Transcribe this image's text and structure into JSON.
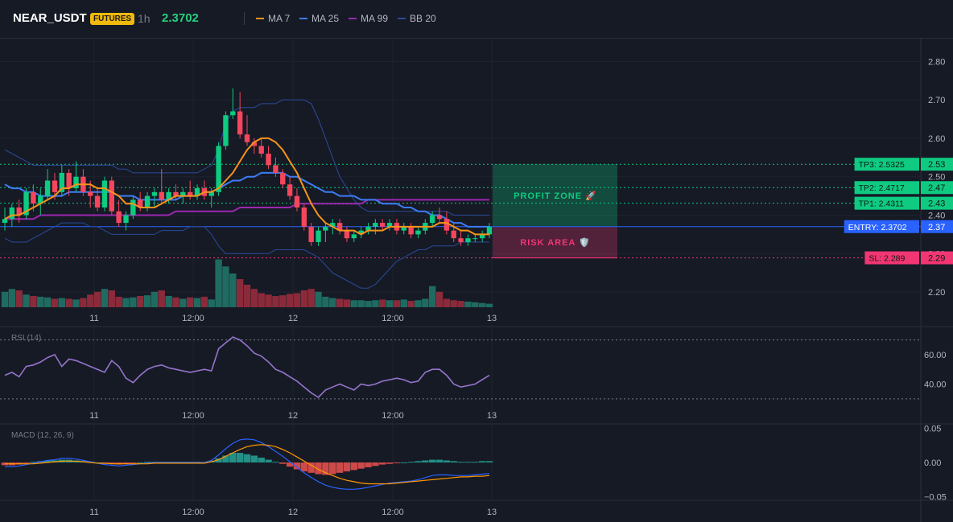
{
  "header": {
    "symbol": "NEAR_USDT",
    "badge": "FUTURES",
    "timeframe": "1h",
    "price": "2.3702",
    "legend": [
      {
        "label": "MA 7",
        "color": "#f7931a"
      },
      {
        "label": "MA 25",
        "color": "#3d7cf5"
      },
      {
        "label": "MA 99",
        "color": "#9c27b0"
      },
      {
        "label": "BB 20",
        "color": "#2a4a9c"
      }
    ]
  },
  "colors": {
    "up": "#26a69a",
    "up_bright": "#0ecb81",
    "down": "#f6465d",
    "entry": "#2962ff",
    "profit": "#0ecb81",
    "risk": "#f23674",
    "rsi": "#9575cd",
    "macd": "#2962ff",
    "signal": "#ff9800"
  },
  "chart_data": [
    {
      "type": "candlestick",
      "name": "price",
      "x_ticks": [
        "11",
        "12:00",
        "12",
        "12:00",
        "13"
      ],
      "y_ticks": [
        "2.80",
        "2.70",
        "2.60",
        "2.50",
        "2.40",
        "2.30",
        "2.20"
      ],
      "ylim": [
        2.15,
        2.83
      ],
      "ohlc": [
        [
          2.38,
          2.42,
          2.36,
          2.39
        ],
        [
          2.39,
          2.43,
          2.37,
          2.42
        ],
        [
          2.42,
          2.44,
          2.38,
          2.4
        ],
        [
          2.4,
          2.47,
          2.39,
          2.46
        ],
        [
          2.46,
          2.48,
          2.41,
          2.43
        ],
        [
          2.43,
          2.47,
          2.4,
          2.45
        ],
        [
          2.45,
          2.52,
          2.44,
          2.49
        ],
        [
          2.49,
          2.51,
          2.44,
          2.46
        ],
        [
          2.46,
          2.53,
          2.45,
          2.51
        ],
        [
          2.51,
          2.52,
          2.45,
          2.47
        ],
        [
          2.47,
          2.54,
          2.46,
          2.5
        ],
        [
          2.5,
          2.52,
          2.45,
          2.46
        ],
        [
          2.46,
          2.49,
          2.42,
          2.45
        ],
        [
          2.45,
          2.47,
          2.41,
          2.42
        ],
        [
          2.42,
          2.5,
          2.41,
          2.49
        ],
        [
          2.49,
          2.5,
          2.4,
          2.41
        ],
        [
          2.41,
          2.44,
          2.37,
          2.38
        ],
        [
          2.38,
          2.41,
          2.36,
          2.4
        ],
        [
          2.4,
          2.45,
          2.39,
          2.44
        ],
        [
          2.44,
          2.46,
          2.41,
          2.42
        ],
        [
          2.42,
          2.46,
          2.41,
          2.45
        ],
        [
          2.45,
          2.47,
          2.42,
          2.46
        ],
        [
          2.46,
          2.52,
          2.43,
          2.44
        ],
        [
          2.44,
          2.47,
          2.43,
          2.46
        ],
        [
          2.46,
          2.48,
          2.44,
          2.45
        ],
        [
          2.45,
          2.47,
          2.43,
          2.46
        ],
        [
          2.46,
          2.49,
          2.44,
          2.45
        ],
        [
          2.45,
          2.48,
          2.44,
          2.47
        ],
        [
          2.47,
          2.49,
          2.44,
          2.45
        ],
        [
          2.45,
          2.47,
          2.42,
          2.46
        ],
        [
          2.46,
          2.59,
          2.45,
          2.58
        ],
        [
          2.58,
          2.67,
          2.57,
          2.66
        ],
        [
          2.66,
          2.73,
          2.65,
          2.67
        ],
        [
          2.67,
          2.72,
          2.6,
          2.61
        ],
        [
          2.61,
          2.66,
          2.58,
          2.59
        ],
        [
          2.59,
          2.6,
          2.56,
          2.58
        ],
        [
          2.58,
          2.6,
          2.55,
          2.56
        ],
        [
          2.56,
          2.58,
          2.52,
          2.53
        ],
        [
          2.53,
          2.55,
          2.5,
          2.51
        ],
        [
          2.51,
          2.52,
          2.47,
          2.48
        ],
        [
          2.48,
          2.5,
          2.44,
          2.45
        ],
        [
          2.45,
          2.47,
          2.41,
          2.42
        ],
        [
          2.42,
          2.43,
          2.36,
          2.37
        ],
        [
          2.37,
          2.38,
          2.32,
          2.33
        ],
        [
          2.33,
          2.37,
          2.32,
          2.36
        ],
        [
          2.36,
          2.38,
          2.33,
          2.37
        ],
        [
          2.37,
          2.39,
          2.35,
          2.38
        ],
        [
          2.38,
          2.39,
          2.35,
          2.36
        ],
        [
          2.36,
          2.37,
          2.33,
          2.34
        ],
        [
          2.34,
          2.36,
          2.33,
          2.35
        ],
        [
          2.35,
          2.37,
          2.34,
          2.36
        ],
        [
          2.36,
          2.38,
          2.35,
          2.37
        ],
        [
          2.37,
          2.39,
          2.35,
          2.38
        ],
        [
          2.38,
          2.39,
          2.36,
          2.37
        ],
        [
          2.37,
          2.39,
          2.36,
          2.38
        ],
        [
          2.38,
          2.39,
          2.35,
          2.36
        ],
        [
          2.36,
          2.38,
          2.35,
          2.37
        ],
        [
          2.37,
          2.38,
          2.34,
          2.35
        ],
        [
          2.35,
          2.37,
          2.34,
          2.36
        ],
        [
          2.36,
          2.39,
          2.35,
          2.38
        ],
        [
          2.38,
          2.41,
          2.37,
          2.4
        ],
        [
          2.4,
          2.42,
          2.38,
          2.39
        ],
        [
          2.39,
          2.41,
          2.35,
          2.36
        ],
        [
          2.36,
          2.38,
          2.33,
          2.34
        ],
        [
          2.34,
          2.36,
          2.32,
          2.33
        ],
        [
          2.33,
          2.35,
          2.32,
          2.34
        ],
        [
          2.34,
          2.35,
          2.33,
          2.34
        ],
        [
          2.34,
          2.36,
          2.33,
          2.35
        ],
        [
          2.35,
          2.38,
          2.34,
          2.37
        ]
      ],
      "ma7": [
        2.39,
        2.4,
        2.4,
        2.41,
        2.42,
        2.43,
        2.44,
        2.45,
        2.47,
        2.47,
        2.48,
        2.48,
        2.48,
        2.47,
        2.47,
        2.46,
        2.45,
        2.43,
        2.43,
        2.42,
        2.42,
        2.42,
        2.43,
        2.44,
        2.45,
        2.45,
        2.45,
        2.45,
        2.46,
        2.46,
        2.47,
        2.49,
        2.51,
        2.54,
        2.57,
        2.59,
        2.6,
        2.6,
        2.59,
        2.57,
        2.54,
        2.51,
        2.47,
        2.43,
        2.4,
        2.38,
        2.37,
        2.36,
        2.36,
        2.36,
        2.35,
        2.36,
        2.36,
        2.36,
        2.37,
        2.37,
        2.37,
        2.37,
        2.37,
        2.37,
        2.37,
        2.38,
        2.38,
        2.37,
        2.36,
        2.36,
        2.35,
        2.35,
        2.35
      ],
      "ma25": [
        2.48,
        2.47,
        2.47,
        2.46,
        2.46,
        2.45,
        2.45,
        2.45,
        2.45,
        2.46,
        2.46,
        2.46,
        2.46,
        2.46,
        2.46,
        2.46,
        2.45,
        2.45,
        2.45,
        2.44,
        2.44,
        2.44,
        2.44,
        2.44,
        2.44,
        2.45,
        2.45,
        2.45,
        2.46,
        2.46,
        2.47,
        2.48,
        2.49,
        2.49,
        2.5,
        2.5,
        2.51,
        2.51,
        2.51,
        2.51,
        2.5,
        2.5,
        2.49,
        2.48,
        2.47,
        2.46,
        2.46,
        2.45,
        2.45,
        2.45,
        2.44,
        2.44,
        2.44,
        2.43,
        2.43,
        2.43,
        2.42,
        2.42,
        2.41,
        2.41,
        2.4,
        2.4,
        2.39,
        2.38,
        2.38,
        2.37,
        2.37,
        2.37,
        2.37
      ],
      "ma99": [
        2.39,
        2.39,
        2.39,
        2.39,
        2.39,
        2.4,
        2.4,
        2.4,
        2.4,
        2.4,
        2.4,
        2.4,
        2.4,
        2.4,
        2.4,
        2.4,
        2.4,
        2.4,
        2.4,
        2.4,
        2.4,
        2.4,
        2.4,
        2.4,
        2.41,
        2.41,
        2.41,
        2.41,
        2.41,
        2.41,
        2.41,
        2.41,
        2.41,
        2.42,
        2.42,
        2.42,
        2.42,
        2.42,
        2.42,
        2.42,
        2.42,
        2.43,
        2.43,
        2.43,
        2.43,
        2.43,
        2.43,
        2.43,
        2.43,
        2.43,
        2.43,
        2.44,
        2.44,
        2.44,
        2.44,
        2.44,
        2.44,
        2.44,
        2.44,
        2.44,
        2.44,
        2.44,
        2.44,
        2.44,
        2.44,
        2.44,
        2.44,
        2.44,
        2.44
      ],
      "bb_upper": [
        2.57,
        2.56,
        2.55,
        2.54,
        2.53,
        2.53,
        2.53,
        2.53,
        2.53,
        2.53,
        2.53,
        2.53,
        2.53,
        2.53,
        2.53,
        2.53,
        2.52,
        2.52,
        2.51,
        2.51,
        2.51,
        2.51,
        2.51,
        2.51,
        2.51,
        2.51,
        2.51,
        2.51,
        2.52,
        2.53,
        2.57,
        2.64,
        2.67,
        2.68,
        2.68,
        2.68,
        2.69,
        2.69,
        2.69,
        2.7,
        2.7,
        2.7,
        2.7,
        2.69,
        2.65,
        2.6,
        2.55,
        2.5,
        2.47,
        2.44,
        2.42,
        2.41,
        2.41,
        2.41,
        2.41,
        2.41,
        2.41,
        2.41,
        2.41,
        2.41,
        2.41,
        2.41,
        2.41,
        2.4,
        2.4,
        2.4,
        2.4,
        2.4,
        2.4
      ],
      "bb_lower": [
        2.34,
        2.33,
        2.33,
        2.33,
        2.34,
        2.35,
        2.36,
        2.37,
        2.38,
        2.38,
        2.38,
        2.38,
        2.37,
        2.37,
        2.36,
        2.35,
        2.35,
        2.35,
        2.35,
        2.35,
        2.35,
        2.35,
        2.36,
        2.36,
        2.36,
        2.36,
        2.37,
        2.37,
        2.37,
        2.35,
        2.32,
        2.3,
        2.3,
        2.3,
        2.3,
        2.3,
        2.3,
        2.3,
        2.31,
        2.31,
        2.31,
        2.31,
        2.31,
        2.3,
        2.29,
        2.27,
        2.25,
        2.24,
        2.23,
        2.22,
        2.21,
        2.21,
        2.22,
        2.24,
        2.26,
        2.28,
        2.29,
        2.3,
        2.31,
        2.31,
        2.32,
        2.32,
        2.32,
        2.32,
        2.33,
        2.33,
        2.33,
        2.33,
        2.33
      ],
      "volume": [
        22,
        26,
        24,
        18,
        16,
        15,
        14,
        12,
        13,
        12,
        11,
        13,
        18,
        22,
        26,
        24,
        15,
        13,
        14,
        16,
        17,
        22,
        24,
        16,
        14,
        12,
        14,
        13,
        15,
        11,
        68,
        58,
        48,
        40,
        32,
        26,
        20,
        18,
        16,
        17,
        19,
        20,
        24,
        26,
        22,
        15,
        13,
        12,
        11,
        10,
        10,
        9,
        10,
        11,
        10,
        10,
        11,
        9,
        10,
        12,
        30,
        22,
        12,
        10,
        9,
        8,
        7,
        6,
        5
      ],
      "levels": {
        "tp3_label": "TP3: 2.5325",
        "tp3_axis": "2.53",
        "tp3": 2.5325,
        "tp2_label": "TP2: 2.4717",
        "tp2_axis": "2.47",
        "tp2": 2.4717,
        "tp1_label": "TP1: 2.4311",
        "tp1_axis": "2.43",
        "tp1": 2.4311,
        "entry_label": "ENTRY: 2.3702",
        "entry_axis": "2.37",
        "entry": 2.3702,
        "sl_label": "SL: 2.289",
        "sl_axis": "2.29",
        "sl": 2.289
      },
      "zones": {
        "profit_label": "PROFIT ZONE 🚀",
        "risk_label": "RISK AREA 🛡️"
      }
    },
    {
      "type": "line",
      "name": "RSI (14)",
      "y_ticks": [
        "60.00",
        "40.00"
      ],
      "ylim": [
        25,
        78
      ],
      "levels": [
        70,
        30
      ],
      "values": [
        46,
        48,
        45,
        52,
        53,
        55,
        58,
        60,
        52,
        57,
        56,
        54,
        52,
        50,
        48,
        56,
        52,
        44,
        41,
        46,
        50,
        52,
        53,
        51,
        50,
        49,
        48,
        49,
        50,
        49,
        64,
        68,
        72,
        70,
        66,
        61,
        59,
        55,
        50,
        48,
        45,
        42,
        38,
        34,
        31,
        36,
        38,
        40,
        38,
        36,
        40,
        39,
        40,
        42,
        43,
        44,
        43,
        41,
        42,
        48,
        50,
        50,
        46,
        40,
        38,
        39,
        40,
        43,
        46
      ]
    },
    {
      "type": "bar",
      "name": "MACD (12, 26, 9)",
      "y_ticks": [
        "0.05",
        "0.00",
        "−0.05"
      ],
      "ylim": [
        -0.055,
        0.055
      ],
      "histogram": [
        -0.004,
        -0.004,
        -0.003,
        -0.001,
        0.001,
        0.002,
        0.003,
        0.003,
        0.004,
        0.004,
        0.003,
        0.002,
        0.001,
        0.0,
        -0.002,
        -0.002,
        -0.003,
        -0.002,
        -0.001,
        0.0,
        0.001,
        0.001,
        0.001,
        0.001,
        0.001,
        0.001,
        0.001,
        0.001,
        0.0,
        0.002,
        0.006,
        0.01,
        0.014,
        0.014,
        0.012,
        0.01,
        0.007,
        0.004,
        0.001,
        -0.002,
        -0.006,
        -0.01,
        -0.013,
        -0.015,
        -0.017,
        -0.018,
        -0.017,
        -0.015,
        -0.013,
        -0.011,
        -0.009,
        -0.007,
        -0.005,
        -0.003,
        -0.002,
        -0.001,
        0.0,
        0.001,
        0.002,
        0.003,
        0.004,
        0.004,
        0.003,
        0.002,
        0.001,
        0.001,
        0.001,
        0.002,
        0.002
      ],
      "macd": [
        -0.006,
        -0.006,
        -0.005,
        -0.003,
        -0.001,
        0.001,
        0.003,
        0.004,
        0.006,
        0.006,
        0.005,
        0.003,
        0.001,
        -0.001,
        -0.003,
        -0.004,
        -0.005,
        -0.004,
        -0.003,
        -0.002,
        -0.001,
        0.0,
        0.0,
        0.0,
        0.0,
        0.0,
        0.0,
        0.0,
        0.0,
        0.003,
        0.011,
        0.02,
        0.028,
        0.033,
        0.034,
        0.033,
        0.029,
        0.023,
        0.016,
        0.009,
        0.001,
        -0.007,
        -0.015,
        -0.022,
        -0.028,
        -0.033,
        -0.036,
        -0.038,
        -0.039,
        -0.039,
        -0.038,
        -0.036,
        -0.034,
        -0.032,
        -0.03,
        -0.029,
        -0.028,
        -0.027,
        -0.025,
        -0.022,
        -0.019,
        -0.018,
        -0.018,
        -0.019,
        -0.019,
        -0.019,
        -0.018,
        -0.017,
        -0.016
      ],
      "signal": [
        -0.002,
        -0.002,
        -0.002,
        -0.002,
        -0.002,
        -0.001,
        0.0,
        0.001,
        0.002,
        0.002,
        0.002,
        0.001,
        0.0,
        -0.001,
        -0.001,
        -0.002,
        -0.002,
        -0.002,
        -0.002,
        -0.002,
        -0.002,
        -0.001,
        -0.001,
        -0.001,
        -0.001,
        -0.001,
        -0.001,
        -0.001,
        -0.001,
        0.001,
        0.004,
        0.009,
        0.014,
        0.019,
        0.023,
        0.025,
        0.026,
        0.025,
        0.023,
        0.019,
        0.014,
        0.008,
        0.002,
        -0.004,
        -0.01,
        -0.015,
        -0.019,
        -0.023,
        -0.026,
        -0.028,
        -0.03,
        -0.031,
        -0.031,
        -0.031,
        -0.031,
        -0.03,
        -0.029,
        -0.028,
        -0.027,
        -0.026,
        -0.025,
        -0.024,
        -0.023,
        -0.022,
        -0.021,
        -0.021,
        -0.02,
        -0.02,
        -0.019
      ]
    }
  ]
}
